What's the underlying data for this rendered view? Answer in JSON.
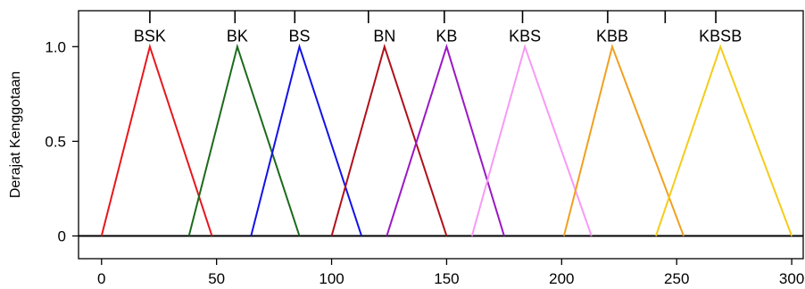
{
  "chart_data": {
    "type": "line",
    "title": "",
    "xlabel": "",
    "ylabel": "Derajat Kenggotaan",
    "xlim": [
      -10,
      305
    ],
    "ylim": [
      -0.12,
      1.19
    ],
    "x_ticks": [
      0,
      50,
      100,
      150,
      200,
      250,
      300
    ],
    "x_tick_labels": [
      "0",
      "50",
      "100",
      "150",
      "200",
      "250",
      "300"
    ],
    "y_ticks": [
      0,
      0.5,
      1
    ],
    "y_tick_labels": [
      "0",
      "0.5",
      "1.0"
    ],
    "top_ticks": [
      21,
      58,
      84,
      116,
      149,
      183,
      220,
      245,
      267
    ],
    "grid": false,
    "legend": "none",
    "series": [
      {
        "name": "BSK",
        "color": "#e8161c",
        "x": [
          0,
          21,
          48
        ],
        "y": [
          0,
          1,
          0
        ]
      },
      {
        "name": "BK",
        "color": "#1c6a1c",
        "x": [
          38,
          59,
          86
        ],
        "y": [
          0,
          1,
          0
        ]
      },
      {
        "name": "BS",
        "color": "#1212e6",
        "x": [
          65,
          86,
          113
        ],
        "y": [
          0,
          1,
          0
        ]
      },
      {
        "name": "BN",
        "color": "#b0101a",
        "x": [
          100,
          123,
          150
        ],
        "y": [
          0,
          1,
          0
        ]
      },
      {
        "name": "KB",
        "color": "#9b18c4",
        "x": [
          124,
          150,
          175
        ],
        "y": [
          0,
          1,
          0
        ]
      },
      {
        "name": "KBS",
        "color": "#f79af5",
        "x": [
          161,
          184,
          213
        ],
        "y": [
          0,
          1,
          0
        ]
      },
      {
        "name": "KBB",
        "color": "#f0a020",
        "x": [
          201,
          222,
          253
        ],
        "y": [
          0,
          1,
          0
        ]
      },
      {
        "name": "KBSB",
        "color": "#f4cc18",
        "x": [
          241,
          269,
          300
        ],
        "y": [
          0,
          1,
          0
        ]
      }
    ]
  }
}
